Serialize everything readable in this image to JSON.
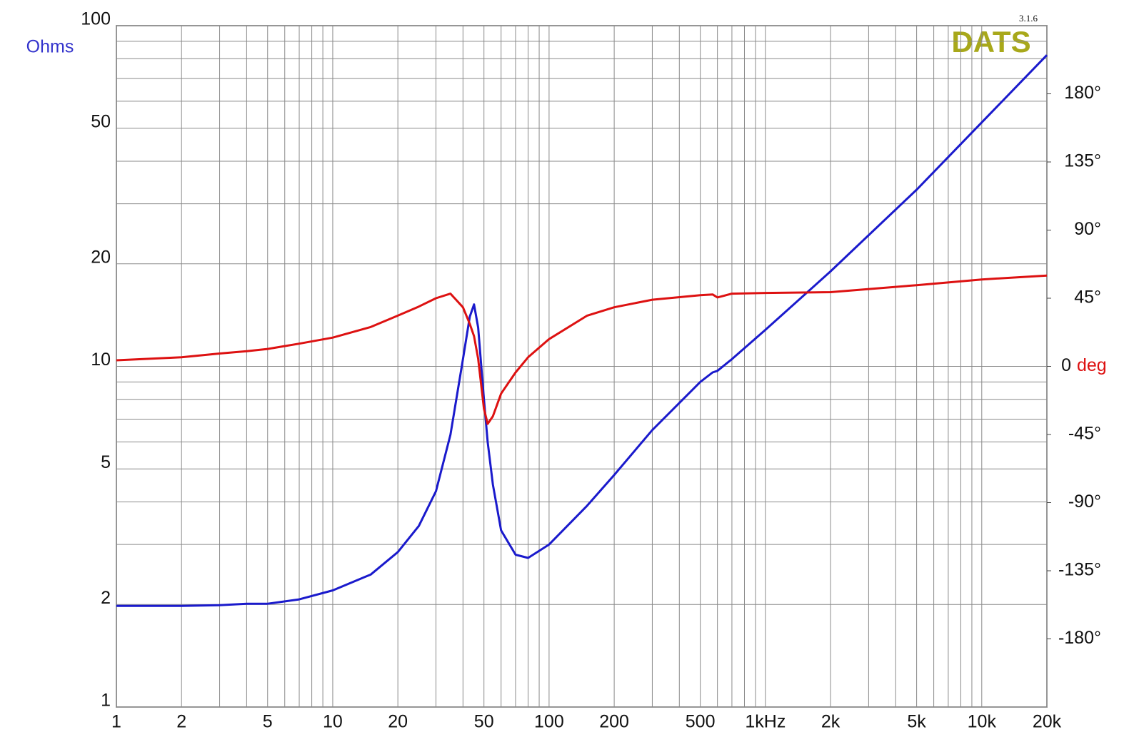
{
  "chart_data": {
    "type": "line",
    "ylabel": "Ohms",
    "y2label": "deg",
    "logo": "DATS",
    "version": "3.1.6",
    "x": [
      1,
      2,
      3,
      4,
      5,
      7,
      10,
      15,
      20,
      25,
      30,
      35,
      40,
      43,
      45,
      47,
      50,
      52,
      55,
      60,
      70,
      80,
      100,
      150,
      200,
      300,
      500,
      570,
      600,
      700,
      1000,
      2000,
      5000,
      10000,
      20000
    ],
    "series": [
      {
        "color": "#1a1acc",
        "values": [
          1.98,
          1.98,
          1.99,
          2.01,
          2.01,
          2.07,
          2.2,
          2.45,
          2.85,
          3.4,
          4.3,
          6.3,
          10.5,
          14,
          15.2,
          13,
          8,
          6,
          4.5,
          3.3,
          2.8,
          2.74,
          3.0,
          3.9,
          4.8,
          6.5,
          9.0,
          9.6,
          9.7,
          10.5,
          12.8,
          19,
          33,
          52,
          82
        ]
      },
      {
        "color": "#dd1111",
        "axis": "y2",
        "values": [
          4,
          6,
          8.5,
          10,
          11.5,
          15,
          19,
          26,
          33.5,
          39.5,
          45,
          48,
          39,
          28,
          20,
          5,
          -28,
          -38,
          -33,
          -18,
          -4,
          6,
          18,
          33.5,
          39,
          44,
          47,
          47.5,
          45.5,
          48,
          48.5,
          49,
          53.6,
          57.4,
          60
        ]
      }
    ],
    "xlim": [
      1,
      20000
    ],
    "log_x": true,
    "xticks": [
      1,
      2,
      5,
      10,
      20,
      50,
      100,
      200,
      500,
      {
        "value": 1000,
        "label": "1kHz"
      },
      {
        "value": 2000,
        "label": "2k"
      },
      {
        "value": 5000,
        "label": "5k"
      },
      {
        "value": 10000,
        "label": "10k"
      },
      {
        "value": 20000,
        "label": "20k"
      }
    ],
    "xminor": [
      3,
      4,
      6,
      7,
      8,
      9,
      30,
      40,
      60,
      70,
      80,
      90,
      300,
      400,
      600,
      700,
      800,
      900,
      3000,
      4000,
      6000,
      7000,
      8000,
      9000
    ],
    "ylim": [
      1,
      100
    ],
    "log_y": true,
    "yticks": [
      1,
      2,
      5,
      10,
      20,
      50,
      100
    ],
    "yminor": [
      3,
      4,
      6,
      7,
      8,
      9,
      30,
      40,
      60,
      70,
      80,
      90
    ],
    "y2lim": [
      -225,
      225
    ],
    "y2ticks": [
      {
        "value": -180,
        "label": "-180°"
      },
      {
        "value": -135,
        "label": "-135°"
      },
      {
        "value": -90,
        "label": "-90°"
      },
      {
        "value": -45,
        "label": "-45°"
      },
      0,
      {
        "value": 45,
        "label": "45°"
      },
      {
        "value": 90,
        "label": "90°"
      },
      {
        "value": 135,
        "label": "135°"
      },
      {
        "value": 180,
        "label": "180°"
      }
    ],
    "grid": true
  }
}
